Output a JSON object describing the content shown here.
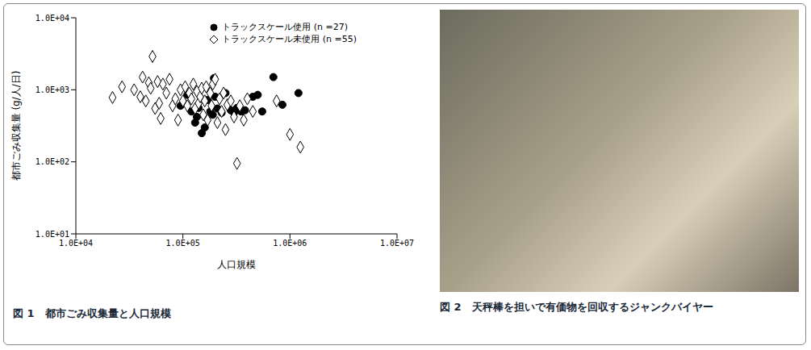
{
  "chart_data": {
    "type": "scatter",
    "title": "図 1　都市ごみ収集量と人口規模",
    "x_label": "人口規模",
    "y_label": "都市ごみ収集量 (g/人/日)",
    "log": true,
    "grid": false,
    "legend": "upper right",
    "xlim": [
      10000,
      10000000
    ],
    "xticks": [
      {
        "value": 10000,
        "label": "1.0E+04"
      },
      {
        "value": 100000,
        "label": "1.0E+05"
      },
      {
        "value": 1000000,
        "label": "1.0E+06"
      },
      {
        "value": 10000000,
        "label": "1.0E+07"
      }
    ],
    "ylim": [
      10,
      10000
    ],
    "yticks": [
      {
        "value": 10,
        "label": "1.0E+01"
      },
      {
        "value": 100,
        "label": "1.0E+02"
      },
      {
        "value": 1000,
        "label": "1.0E+03"
      },
      {
        "value": 10000,
        "label": "1.0E+04"
      }
    ],
    "series": [
      {
        "name": "トラックスケール使用 (n =27)",
        "color": "#000000",
        "marker": "filled_circle",
        "x": [
          95000,
          110000,
          120000,
          130000,
          135000,
          140000,
          150000,
          160000,
          170000,
          180000,
          190000,
          195000,
          200000,
          210000,
          230000,
          250000,
          280000,
          300000,
          320000,
          350000,
          380000,
          450000,
          500000,
          550000,
          700000,
          850000,
          1200000
        ],
        "values": [
          600,
          850,
          500,
          350,
          420,
          560,
          250,
          300,
          720,
          500,
          450,
          1450,
          800,
          550,
          480,
          900,
          520,
          480,
          560,
          500,
          520,
          800,
          850,
          500,
          1500,
          620,
          900
        ]
      },
      {
        "name": "トラックスケール未使用 (n =55)",
        "color": "#000000",
        "marker": "open_diamond",
        "x": [
          22000,
          27000,
          35000,
          40000,
          42000,
          45000,
          48000,
          50000,
          52000,
          55000,
          58000,
          60000,
          62000,
          65000,
          70000,
          75000,
          80000,
          85000,
          90000,
          95000,
          100000,
          105000,
          110000,
          115000,
          120000,
          125000,
          130000,
          135000,
          140000,
          145000,
          150000,
          155000,
          160000,
          165000,
          170000,
          180000,
          185000,
          190000,
          200000,
          210000,
          220000,
          230000,
          240000,
          250000,
          260000,
          280000,
          300000,
          320000,
          340000,
          370000,
          400000,
          450000,
          750000,
          1000000,
          1250000
        ],
        "values": [
          780,
          1100,
          1000,
          800,
          1500,
          700,
          1250,
          1050,
          2900,
          550,
          1300,
          650,
          400,
          1200,
          900,
          1400,
          600,
          750,
          380,
          1000,
          700,
          1100,
          600,
          900,
          750,
          1200,
          550,
          950,
          650,
          800,
          1050,
          450,
          700,
          1100,
          380,
          900,
          600,
          1200,
          1400,
          350,
          750,
          500,
          900,
          280,
          620,
          700,
          420,
          95,
          600,
          380,
          750,
          500,
          700,
          240,
          160
        ]
      }
    ]
  },
  "photo": {
    "caption": "図 2　天秤棒を担いで有価物を回収するジャンクバイヤー"
  }
}
